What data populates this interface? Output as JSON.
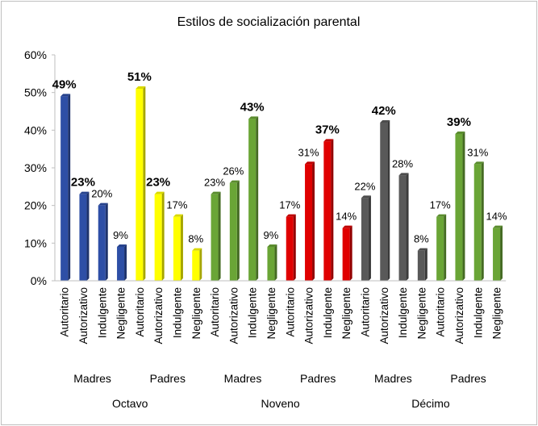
{
  "chart_data": {
    "type": "bar",
    "title": "Estilos de socialización parental",
    "ylim": [
      0,
      60
    ],
    "yticks": [
      "0%",
      "10%",
      "20%",
      "30%",
      "40%",
      "50%",
      "60%"
    ],
    "grid": false,
    "legend": "none",
    "categories": [
      "Autoritario",
      "Autorizativo",
      "Indulgente",
      "Negligente",
      "Autoritario",
      "Autorizativo",
      "Indulgente",
      "Negligente",
      "Autoritario",
      "Autorizativo",
      "Indulgente",
      "Negligente",
      "Autoritario",
      "Autorizativo",
      "Indulgente",
      "Negligente",
      "Autoritario",
      "Autorizativo",
      "Indulgente",
      "Negligente",
      "Autoritario",
      "Autorizativo",
      "Indulgente",
      "Negligente"
    ],
    "values": [
      49,
      23,
      20,
      9,
      51,
      23,
      17,
      8,
      23,
      26,
      43,
      9,
      17,
      31,
      37,
      14,
      22,
      42,
      28,
      8,
      17,
      39,
      31,
      14
    ],
    "data_labels": [
      "49%",
      "23%",
      "20%",
      "9%",
      "51%",
      "23%",
      "17%",
      "8%",
      "23%",
      "26%",
      "43%",
      "9%",
      "17%",
      "31%",
      "37%",
      "14%",
      "22%",
      "42%",
      "28%",
      "8%",
      "17%",
      "39%",
      "31%",
      "14%"
    ],
    "bold_labels": [
      true,
      true,
      false,
      false,
      true,
      true,
      false,
      false,
      false,
      false,
      true,
      false,
      false,
      false,
      true,
      false,
      false,
      true,
      false,
      false,
      false,
      true,
      false,
      false
    ],
    "colors": [
      "#2e4fa6",
      "#2e4fa6",
      "#2e4fa6",
      "#2e4fa6",
      "#ffff00",
      "#ffff00",
      "#ffff00",
      "#ffff00",
      "#6aa536",
      "#6aa536",
      "#6aa536",
      "#6aa536",
      "#e00000",
      "#e00000",
      "#e00000",
      "#e00000",
      "#595959",
      "#595959",
      "#595959",
      "#595959",
      "#6aa536",
      "#6aa536",
      "#6aa536",
      "#6aa536"
    ],
    "groups": [
      "Madres",
      "Padres",
      "Madres",
      "Padres",
      "Madres",
      "Padres"
    ],
    "supergroups": [
      "Octavo",
      "Noveno",
      "Décimo"
    ]
  }
}
